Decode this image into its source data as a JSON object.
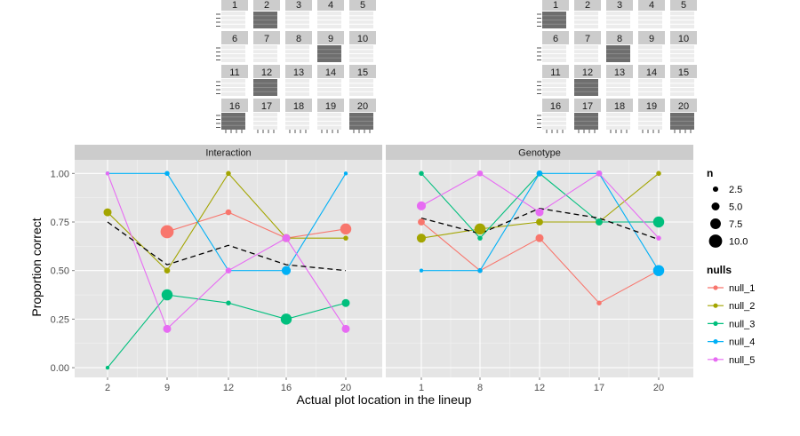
{
  "chart_data": {
    "type": "line",
    "xlabel": "Actual plot location in the lineup",
    "ylabel": "Proportion correct",
    "ylim": [
      -0.05,
      1.07
    ],
    "y_ticks": [
      "0.00",
      "0.25",
      "0.50",
      "0.75",
      "1.00"
    ],
    "y_tick_values": [
      0,
      0.25,
      0.5,
      0.75,
      1.0
    ],
    "grid": true,
    "colors": {
      "null_1": "#f8766d",
      "null_2": "#a3a500",
      "null_3": "#00bf7d",
      "null_4": "#00b0f6",
      "null_5": "#e76bf3",
      "panel_bg": "#e5e5e5",
      "strip_bg": "#cccccc",
      "dashed": "#000000"
    },
    "panels": [
      {
        "strip": "Interaction",
        "categories": [
          "2",
          "9",
          "12",
          "16",
          "20"
        ],
        "series": [
          {
            "name": "null_1",
            "values": [
              null,
              0.7,
              0.8,
              0.667,
              0.714
            ],
            "sizes": [
              null,
              10,
              3,
              5,
              8
            ]
          },
          {
            "name": "null_2",
            "values": [
              0.8,
              0.5,
              1.0,
              0.667,
              0.667
            ],
            "sizes": [
              5,
              3,
              2,
              5,
              2
            ]
          },
          {
            "name": "null_3",
            "values": [
              0.0,
              0.375,
              0.333,
              0.25,
              0.333
            ],
            "sizes": [
              1,
              8,
              2,
              8,
              5
            ]
          },
          {
            "name": "null_4",
            "values": [
              1.0,
              1.0,
              0.5,
              0.5,
              1.0
            ],
            "sizes": [
              1,
              2,
              2,
              6,
              1
            ]
          },
          {
            "name": "null_5",
            "values": [
              1.0,
              0.2,
              0.5,
              0.667,
              0.2
            ],
            "sizes": [
              1,
              5,
              3,
              5,
              5
            ]
          }
        ],
        "dashed": [
          0.75,
          0.53,
          0.63,
          0.53,
          0.5
        ],
        "lineup": {
          "highlight": [
            2,
            9,
            12,
            16,
            20
          ]
        }
      },
      {
        "strip": "Genotype",
        "categories": [
          "1",
          "8",
          "12",
          "17",
          "20"
        ],
        "series": [
          {
            "name": "null_1",
            "values": [
              0.75,
              0.5,
              0.667,
              0.333,
              0.5
            ],
            "sizes": [
              4,
              2,
              5,
              2,
              4
            ]
          },
          {
            "name": "null_2",
            "values": [
              0.667,
              0.714,
              0.75,
              0.75,
              1.0
            ],
            "sizes": [
              6,
              8,
              4,
              4,
              2
            ]
          },
          {
            "name": "null_3",
            "values": [
              1.0,
              0.667,
              1.0,
              0.75,
              0.75
            ],
            "sizes": [
              2,
              2,
              3,
              4,
              8
            ]
          },
          {
            "name": "null_4",
            "values": [
              0.5,
              0.5,
              1.0,
              1.0,
              0.5
            ],
            "sizes": [
              1,
              2,
              3,
              3,
              8
            ]
          },
          {
            "name": "null_5",
            "values": [
              0.833,
              1.0,
              0.8,
              1.0,
              0.667
            ],
            "sizes": [
              6,
              3,
              5,
              3,
              2
            ]
          }
        ],
        "dashed": [
          0.77,
          0.69,
          0.82,
          0.77,
          0.66
        ],
        "lineup": {
          "highlight": [
            1,
            8,
            12,
            17,
            20
          ]
        }
      }
    ],
    "legend": {
      "size_title": "n",
      "size_items": [
        {
          "label": "2.5",
          "value": 2.5
        },
        {
          "label": "5.0",
          "value": 5.0
        },
        {
          "label": "7.5",
          "value": 7.5
        },
        {
          "label": "10.0",
          "value": 10.0
        }
      ],
      "color_title": "nulls",
      "color_items": [
        "null_1",
        "null_2",
        "null_3",
        "null_4",
        "null_5"
      ]
    },
    "lineup_numbers": [
      "1",
      "2",
      "3",
      "4",
      "5",
      "6",
      "7",
      "8",
      "9",
      "10",
      "11",
      "12",
      "13",
      "14",
      "15",
      "16",
      "17",
      "18",
      "19",
      "20"
    ]
  }
}
